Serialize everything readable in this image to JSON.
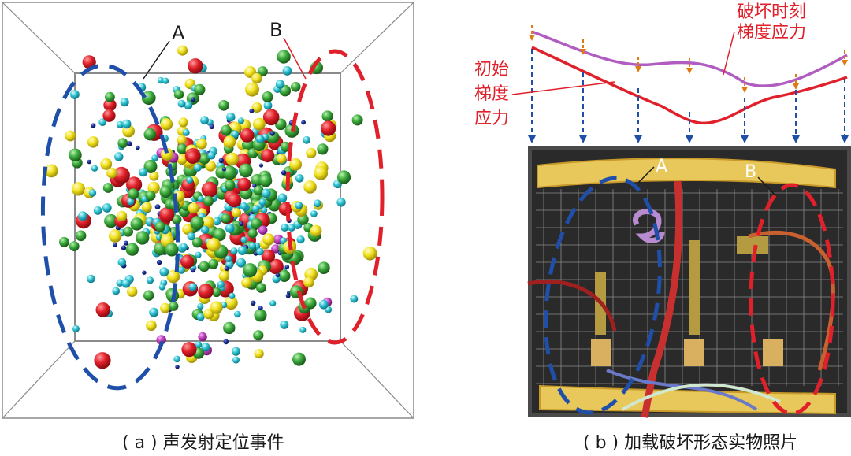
{
  "figure": {
    "panel_a": {
      "caption": "( a ) 声发射定位事件",
      "label_a": "A",
      "label_b": "B",
      "sphere_colors": {
        "red": "#e0202a",
        "yellow": "#f2e21c",
        "green": "#3cab3c",
        "cyan": "#2fc4d2",
        "blue": "#1a2f96",
        "magenta": "#c040c0"
      },
      "zone_a_color": "#1f4fa8",
      "zone_b_color": "#e0202a"
    },
    "panel_b": {
      "caption": "( b ) 加载破坏形态实物照片",
      "label_a": "A",
      "label_b": "B",
      "initial_stress_label_lines": [
        "初始",
        "梯度",
        "应力"
      ],
      "failure_stress_label_lines": [
        "破坏时刻",
        "梯度应力"
      ],
      "initial_curve_color": "#e0202a",
      "failure_curve_color": "#b05cc0",
      "arrow_blue": "#1f4fa8",
      "arrow_orange": "#e07a10"
    }
  }
}
